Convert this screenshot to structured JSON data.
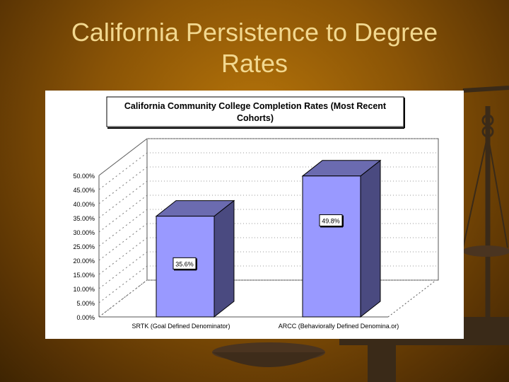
{
  "slide": {
    "title_line1": "California Persistence to Degree",
    "title_line2": "Rates"
  },
  "chart_data": {
    "type": "bar",
    "title_line1": "California Community College Completion Rates (Most Recent",
    "title_line2": "Cohorts)",
    "categories": [
      "SRTK (Goal Defined Denominator)",
      "ARCC (Behaviorally Defined Denomina.or)"
    ],
    "values": [
      35.6,
      49.8
    ],
    "data_labels": [
      "35.6%",
      "49.8%"
    ],
    "yticks": [
      "0.00%",
      "5.00%",
      "10.00%",
      "15.00%",
      "20.00%",
      "25.00%",
      "30.00%",
      "35.00%",
      "40.00%",
      "45.00%",
      "50.00%"
    ],
    "ylim": [
      0,
      50
    ],
    "grid": true,
    "bar_color": "#9999ff",
    "bar_side_color": "#4a4a80",
    "bar_top_color": "#6b6bb0"
  }
}
